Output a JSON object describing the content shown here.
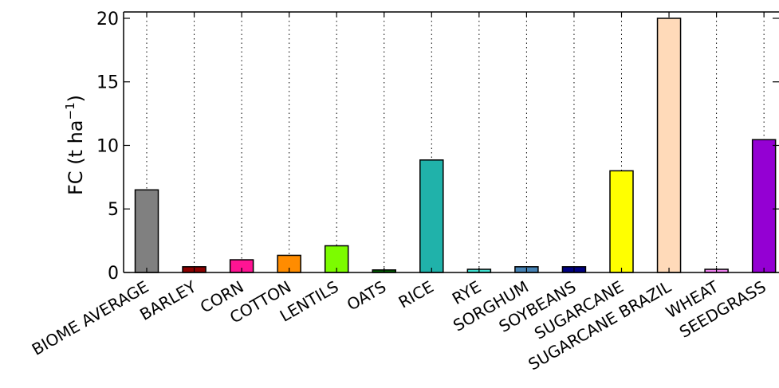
{
  "chart_data": {
    "type": "bar",
    "ylabel": "FC (t ha",
    "ylabel_exponent": "−1",
    "ylabel_close": ")",
    "ylim": [
      0,
      20.5
    ],
    "yticks": [
      0,
      5,
      10,
      15,
      20
    ],
    "grid": "vertical dotted lines at each category",
    "categories": [
      "BIOME AVERAGE",
      "BARLEY",
      "CORN",
      "COTTON",
      "LENTILS",
      "OATS",
      "RICE",
      "RYE",
      "SORGHUM",
      "SOYBEANS",
      "SUGARCANE",
      "SUGARCANE BRAZIL",
      "WHEAT",
      "SEEDGRASS"
    ],
    "values": [
      6.5,
      0.45,
      1.0,
      1.35,
      2.1,
      0.2,
      8.85,
      0.25,
      0.45,
      0.45,
      8.0,
      20.0,
      0.25,
      10.45
    ],
    "colors": [
      "#808080",
      "#8b0000",
      "#ff1493",
      "#ff8c00",
      "#7cfc00",
      "#006400",
      "#20b2aa",
      "#40e0d0",
      "#4682b4",
      "#000080",
      "#ffff00",
      "#ffdab9",
      "#ee82ee",
      "#9400d3"
    ]
  }
}
